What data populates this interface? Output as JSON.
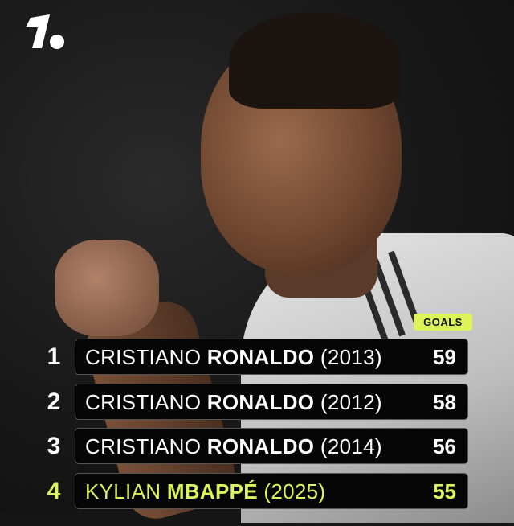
{
  "brand": {
    "logo": "1.",
    "accent": "#dcf35a"
  },
  "header": {
    "goals_label": "GOALS"
  },
  "rows": [
    {
      "rank": "1",
      "first": "CRISTIANO",
      "last": "RONALDO",
      "year": "(2013)",
      "goals": "59"
    },
    {
      "rank": "2",
      "first": "CRISTIANO",
      "last": "RONALDO",
      "year": "(2012)",
      "goals": "58"
    },
    {
      "rank": "3",
      "first": "CRISTIANO",
      "last": "RONALDO",
      "year": "(2014)",
      "goals": "56"
    },
    {
      "rank": "4",
      "first": "KYLIAN",
      "last": "MBAPPÉ",
      "year": "(2025)",
      "goals": "55"
    }
  ]
}
